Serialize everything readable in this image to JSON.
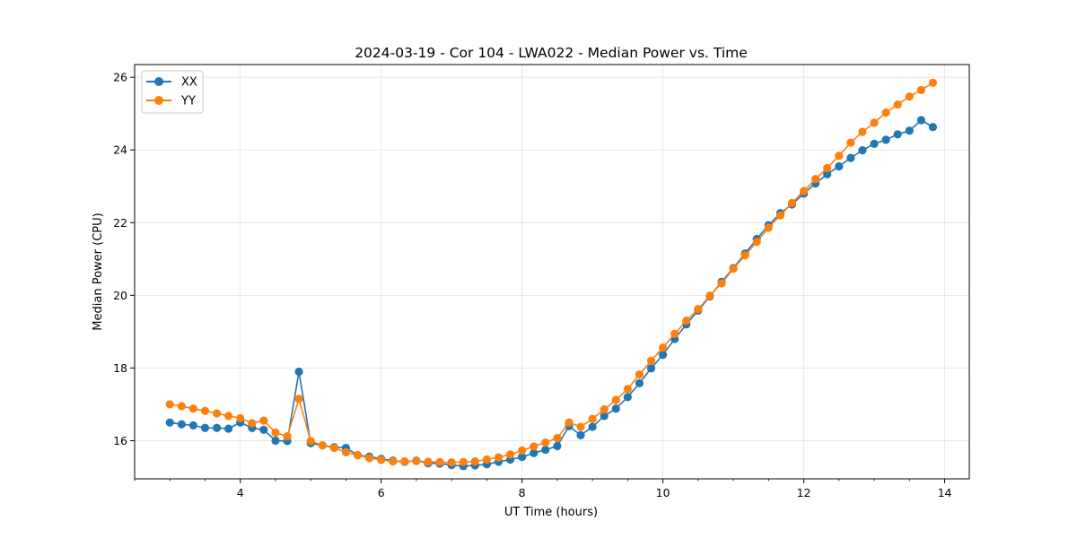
{
  "chart_data": {
    "type": "line",
    "title": "2024-03-19 - Cor 104 - LWA022 - Median Power vs. Time",
    "xlabel": "UT Time (hours)",
    "ylabel": "Median Power (CPU)",
    "xlim": [
      2.5,
      14.35
    ],
    "ylim": [
      14.95,
      26.35
    ],
    "xticks": [
      4,
      6,
      8,
      10,
      12,
      14
    ],
    "yticks": [
      16,
      18,
      20,
      22,
      24,
      26
    ],
    "grid": true,
    "legend_position": "upper-left",
    "x": [
      3.0,
      3.167,
      3.333,
      3.5,
      3.667,
      3.833,
      4.0,
      4.167,
      4.333,
      4.5,
      4.667,
      4.833,
      5.0,
      5.167,
      5.333,
      5.5,
      5.667,
      5.833,
      6.0,
      6.167,
      6.333,
      6.5,
      6.667,
      6.833,
      7.0,
      7.167,
      7.333,
      7.5,
      7.667,
      7.833,
      8.0,
      8.167,
      8.333,
      8.5,
      8.667,
      8.833,
      9.0,
      9.167,
      9.333,
      9.5,
      9.667,
      9.833,
      10.0,
      10.167,
      10.333,
      10.5,
      10.667,
      10.833,
      11.0,
      11.167,
      11.333,
      11.5,
      11.667,
      11.833,
      12.0,
      12.167,
      12.333,
      12.5,
      12.667,
      12.833,
      13.0,
      13.167,
      13.333,
      13.5,
      13.667,
      13.833
    ],
    "series": [
      {
        "name": "XX",
        "color": "#1f77b4",
        "values": [
          16.5,
          16.45,
          16.42,
          16.35,
          16.35,
          16.33,
          16.5,
          16.35,
          16.3,
          16.0,
          15.99,
          17.9,
          15.93,
          15.87,
          15.82,
          15.8,
          15.6,
          15.56,
          15.5,
          15.45,
          15.42,
          15.45,
          15.38,
          15.37,
          15.33,
          15.3,
          15.32,
          15.35,
          15.42,
          15.48,
          15.55,
          15.66,
          15.75,
          15.85,
          16.4,
          16.15,
          16.38,
          16.68,
          16.88,
          17.2,
          17.58,
          17.99,
          18.36,
          18.8,
          19.2,
          19.58,
          19.97,
          20.37,
          20.75,
          21.15,
          21.55,
          21.93,
          22.26,
          22.5,
          22.8,
          23.08,
          23.33,
          23.55,
          23.78,
          23.99,
          24.17,
          24.28,
          24.43,
          24.53,
          24.82,
          24.63
        ]
      },
      {
        "name": "YY",
        "color": "#ff7f0e",
        "values": [
          17.0,
          16.95,
          16.88,
          16.82,
          16.75,
          16.68,
          16.62,
          16.48,
          16.55,
          16.22,
          16.12,
          17.15,
          15.99,
          15.87,
          15.8,
          15.68,
          15.6,
          15.52,
          15.47,
          15.43,
          15.43,
          15.44,
          15.42,
          15.41,
          15.4,
          15.41,
          15.43,
          15.48,
          15.54,
          15.62,
          15.73,
          15.84,
          15.95,
          16.07,
          16.5,
          16.38,
          16.6,
          16.86,
          17.12,
          17.42,
          17.82,
          18.2,
          18.56,
          18.94,
          19.3,
          19.62,
          19.99,
          20.33,
          20.73,
          21.1,
          21.47,
          21.86,
          22.2,
          22.54,
          22.87,
          23.2,
          23.5,
          23.84,
          24.2,
          24.5,
          24.75,
          25.03,
          25.25,
          25.47,
          25.65,
          25.85
        ]
      }
    ]
  }
}
